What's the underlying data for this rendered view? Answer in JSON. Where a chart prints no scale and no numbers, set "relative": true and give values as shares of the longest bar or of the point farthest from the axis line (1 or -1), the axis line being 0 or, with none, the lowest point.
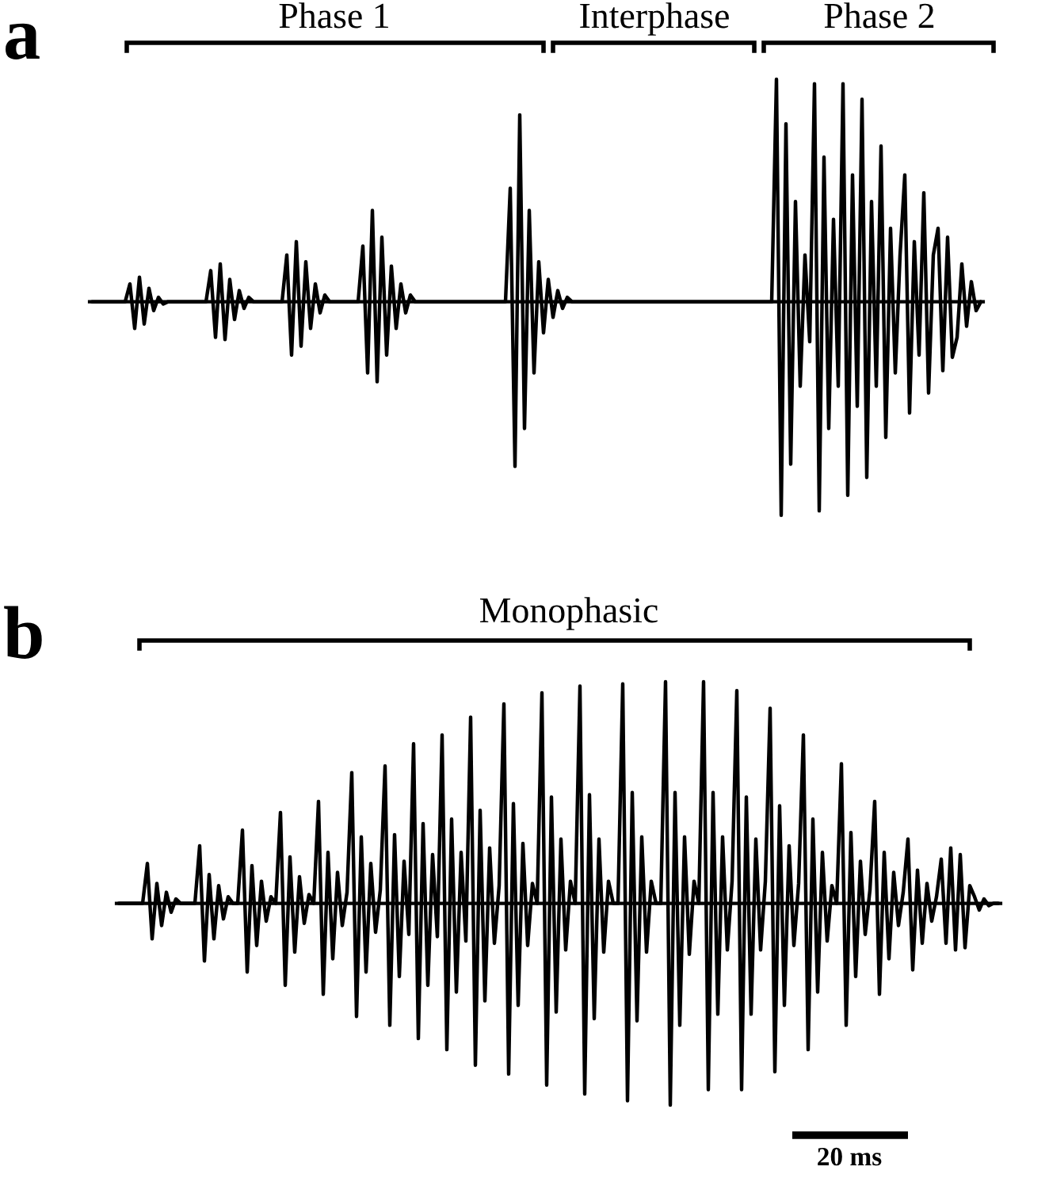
{
  "chart_data": [
    {
      "type": "line",
      "title": "a",
      "relative": true,
      "color": "#000000",
      "annotations": [
        "Phase 1",
        "Interphase",
        "Phase 2"
      ],
      "categories": [
        null,
        null,
        null,
        null,
        null,
        null,
        null,
        null,
        null,
        null,
        null,
        null,
        null,
        null,
        null,
        null,
        null,
        null,
        null,
        null,
        null,
        null,
        null,
        null,
        null,
        null,
        null,
        null,
        null,
        null,
        null,
        null,
        null,
        null,
        null,
        null,
        null,
        null,
        null,
        null,
        null,
        null,
        null,
        null,
        null,
        null,
        null,
        null,
        null,
        null,
        null,
        null,
        null,
        null,
        null,
        null,
        null,
        null,
        null,
        null,
        null,
        null,
        null,
        null,
        null,
        null,
        null,
        null,
        null,
        null,
        null,
        null,
        null,
        null,
        null,
        null,
        null,
        null,
        null,
        null,
        null,
        null,
        null,
        null,
        null,
        null,
        null,
        null,
        null,
        null,
        null,
        null,
        null,
        null,
        null,
        null,
        null,
        null,
        null,
        null,
        null,
        null,
        null,
        null,
        null,
        null,
        null,
        null,
        null,
        null,
        null,
        null,
        null,
        null,
        null,
        null,
        null,
        null,
        null,
        null,
        null,
        null,
        null,
        null,
        null,
        null,
        null,
        null,
        null,
        null,
        null,
        null,
        null,
        null,
        null,
        null,
        null,
        null,
        null,
        null,
        null,
        null,
        null,
        null,
        null,
        null,
        null,
        null,
        null,
        null,
        null,
        null,
        null,
        null,
        null,
        null,
        null,
        null,
        null,
        null,
        null,
        null,
        null,
        null,
        null,
        null,
        null,
        null,
        null,
        null,
        null,
        null,
        null,
        null,
        null,
        null,
        null,
        null,
        null,
        null,
        null,
        null,
        null,
        null,
        null,
        null,
        null,
        null
      ],
      "values": [
        0,
        0,
        0,
        0,
        0,
        0,
        0,
        0,
        0.08,
        -0.12,
        0.11,
        -0.1,
        0.06,
        -0.04,
        0.02,
        -0.01,
        0,
        0,
        0,
        0,
        0,
        0,
        0,
        0,
        0,
        0.14,
        -0.16,
        0.17,
        -0.17,
        0.1,
        -0.08,
        0.05,
        -0.03,
        0.02,
        0,
        0,
        0,
        0,
        0,
        0,
        0,
        0.21,
        -0.24,
        0.27,
        -0.2,
        0.18,
        -0.12,
        0.08,
        -0.05,
        0.03,
        0,
        0,
        0,
        0,
        0,
        0,
        0,
        0.25,
        -0.32,
        0.41,
        -0.36,
        0.29,
        -0.24,
        0.16,
        -0.12,
        0.08,
        -0.05,
        0.03,
        0,
        0,
        0,
        0,
        0,
        0,
        0,
        0,
        0,
        0,
        0,
        0,
        0,
        0,
        0,
        0,
        0,
        0,
        0,
        0,
        0.51,
        -0.74,
        0.84,
        -0.57,
        0.41,
        -0.32,
        0.18,
        -0.14,
        0.1,
        -0.07,
        0.05,
        -0.03,
        0.02,
        0,
        0,
        0,
        0,
        0,
        0,
        0,
        0,
        0,
        0,
        0,
        0,
        0,
        0,
        0,
        0,
        0,
        0,
        0,
        0,
        0,
        0,
        0,
        0,
        0,
        0,
        0,
        0,
        0,
        0,
        0,
        0,
        0,
        0,
        0,
        0,
        0,
        0,
        0,
        0,
        0,
        0,
        0,
        1,
        -0.96,
        0.8,
        -0.73,
        0.45,
        -0.38,
        0.21,
        -0.18,
        0.98,
        -0.94,
        0.65,
        -0.57,
        0.37,
        -0.38,
        0.98,
        -0.87,
        0.57,
        -0.47,
        0.91,
        -0.79,
        0.45,
        -0.38,
        0.7,
        -0.61,
        0.33,
        -0.32,
        0.21,
        0.57,
        -0.5,
        0.27,
        -0.24,
        0.49,
        -0.41,
        0.21,
        0.33,
        -0.31,
        0.29,
        -0.25,
        -0.16,
        0.17,
        -0.11,
        0.09,
        -0.04,
        0
      ]
    },
    {
      "type": "line",
      "title": "b",
      "relative": true,
      "color": "#000000",
      "annotations": [
        "Monophasic",
        "20 ms"
      ],
      "categories": [
        null,
        null,
        null,
        null,
        null,
        null,
        null,
        null,
        null,
        null,
        null,
        null,
        null,
        null,
        null,
        null,
        null,
        null,
        null,
        null,
        null,
        null,
        null,
        null,
        null,
        null,
        null,
        null,
        null,
        null,
        null,
        null,
        null,
        null,
        null,
        null,
        null,
        null,
        null,
        null,
        null,
        null,
        null,
        null,
        null,
        null,
        null,
        null,
        null,
        null,
        null,
        null,
        null,
        null,
        null,
        null,
        null,
        null,
        null,
        null,
        null,
        null,
        null,
        null,
        null,
        null,
        null,
        null,
        null,
        null,
        null,
        null,
        null,
        null,
        null,
        null,
        null,
        null,
        null,
        null,
        null,
        null,
        null,
        null,
        null,
        null,
        null,
        null,
        null,
        null,
        null,
        null,
        null,
        null,
        null,
        null,
        null,
        null,
        null,
        null,
        null,
        null,
        null,
        null,
        null,
        null,
        null,
        null,
        null,
        null,
        null,
        null,
        null,
        null,
        null,
        null,
        null,
        null,
        null,
        null,
        null,
        null,
        null,
        null,
        null,
        null,
        null,
        null,
        null,
        null,
        null,
        null,
        null,
        null,
        null,
        null,
        null,
        null,
        null,
        null,
        null,
        null,
        null,
        null,
        null,
        null,
        null,
        null,
        null,
        null,
        null,
        null,
        null,
        null,
        null,
        null,
        null,
        null,
        null,
        null,
        null,
        null,
        null,
        null,
        null,
        null,
        null,
        null,
        null,
        null,
        null,
        null,
        null,
        null,
        null,
        null,
        null,
        null,
        null,
        null,
        null,
        null,
        null,
        null,
        null,
        null
      ],
      "values": [
        0,
        0,
        0,
        0,
        0,
        0,
        0.18,
        -0.16,
        0.09,
        -0.1,
        0.05,
        -0.04,
        0.02,
        0,
        0,
        0,
        0,
        0.26,
        -0.26,
        0.13,
        -0.16,
        0.08,
        -0.07,
        0.03,
        0,
        0,
        0.33,
        -0.31,
        0.17,
        -0.19,
        0.1,
        -0.08,
        0.03,
        0,
        0.41,
        -0.37,
        0.21,
        -0.22,
        0.12,
        -0.09,
        0.04,
        0,
        0.46,
        -0.41,
        0.23,
        -0.25,
        0.14,
        -0.1,
        0.05,
        0.59,
        -0.51,
        0.3,
        -0.31,
        0.18,
        -0.13,
        0.06,
        0.62,
        -0.55,
        0.31,
        -0.33,
        0.19,
        -0.14,
        0.72,
        -0.61,
        0.36,
        -0.37,
        0.22,
        -0.15,
        0.76,
        -0.66,
        0.38,
        -0.4,
        0.23,
        -0.17,
        0.84,
        -0.73,
        0.42,
        -0.44,
        0.25,
        -0.18,
        0.08,
        0.9,
        -0.77,
        0.45,
        -0.46,
        0.27,
        -0.19,
        0.09,
        0,
        0.95,
        -0.82,
        0.48,
        -0.49,
        0.29,
        -0.21,
        0.1,
        0,
        0.98,
        -0.86,
        0.49,
        -0.52,
        0.29,
        -0.22,
        0.1,
        0,
        0,
        0.99,
        -0.89,
        0.5,
        -0.53,
        0.3,
        -0.22,
        0.1,
        0,
        0,
        1,
        -0.91,
        0.5,
        -0.55,
        0.3,
        -0.23,
        0.1,
        0,
        1,
        -0.84,
        0.5,
        -0.5,
        0.3,
        -0.21,
        0.1,
        0.96,
        -0.84,
        0.48,
        -0.5,
        0.29,
        -0.21,
        0.1,
        0.88,
        -0.76,
        0.44,
        -0.46,
        0.26,
        -0.19,
        0.09,
        0.76,
        -0.66,
        0.38,
        -0.4,
        0.23,
        -0.17,
        0.08,
        0,
        0.63,
        -0.55,
        0.32,
        -0.33,
        0.19,
        -0.14,
        0.06,
        0.46,
        -0.41,
        0.23,
        -0.25,
        0.14,
        -0.1,
        0.05,
        0.29,
        -0.3,
        0.15,
        -0.18,
        0.09,
        -0.08,
        0.03,
        0.2,
        -0.18,
        0.25,
        -0.21,
        0.22,
        -0.2,
        0.08,
        0.03,
        -0.03,
        0.02,
        -0.01,
        0,
        0
      ]
    }
  ]
}
